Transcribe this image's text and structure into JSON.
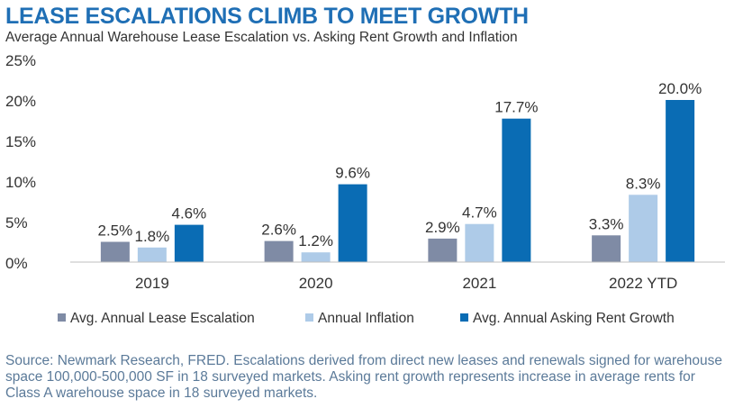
{
  "header": {
    "title": "LEASE ESCALATIONS CLIMB TO MEET GROWTH",
    "subtitle": "Average Annual Warehouse Lease Escalation vs. Asking Rent Growth and Inflation"
  },
  "chart_data": {
    "type": "bar",
    "title": "LEASE ESCALATIONS CLIMB TO MEET GROWTH",
    "subtitle": "Average Annual Warehouse Lease Escalation vs. Asking Rent Growth and Inflation",
    "xlabel": "",
    "ylabel": "",
    "categories": [
      "2019",
      "2020",
      "2021",
      "2022 YTD"
    ],
    "series": [
      {
        "name": "Avg. Annual Lease Escalation",
        "color": "#7f8ba5",
        "values": [
          2.5,
          2.6,
          2.9,
          3.3
        ],
        "labels": [
          "2.5%",
          "2.6%",
          "2.9%",
          "3.3%"
        ]
      },
      {
        "name": "Annual Inflation",
        "color": "#aecbe8",
        "values": [
          1.8,
          1.2,
          4.7,
          8.3
        ],
        "labels": [
          "1.8%",
          "1.2%",
          "4.7%",
          "8.3%"
        ]
      },
      {
        "name": "Avg. Annual Asking Rent Growth",
        "color": "#0a6cb4",
        "values": [
          4.6,
          9.6,
          17.7,
          20.0
        ],
        "labels": [
          "4.6%",
          "9.6%",
          "17.7%",
          "20.0%"
        ]
      }
    ],
    "yticks": [
      0,
      5,
      10,
      15,
      20,
      25
    ],
    "ytick_labels": [
      "0%",
      "5%",
      "10%",
      "15%",
      "20%",
      "25%"
    ],
    "ylim": [
      0,
      25
    ],
    "grid": false,
    "legend_position": "bottom"
  },
  "footnote": "Source: Newmark Research, FRED. Escalations derived from direct new leases and renewals signed for warehouse space 100,000-500,000 SF in 18 surveyed markets. Asking rent growth represents increase in average rents for Class A warehouse space in 18 surveyed markets."
}
